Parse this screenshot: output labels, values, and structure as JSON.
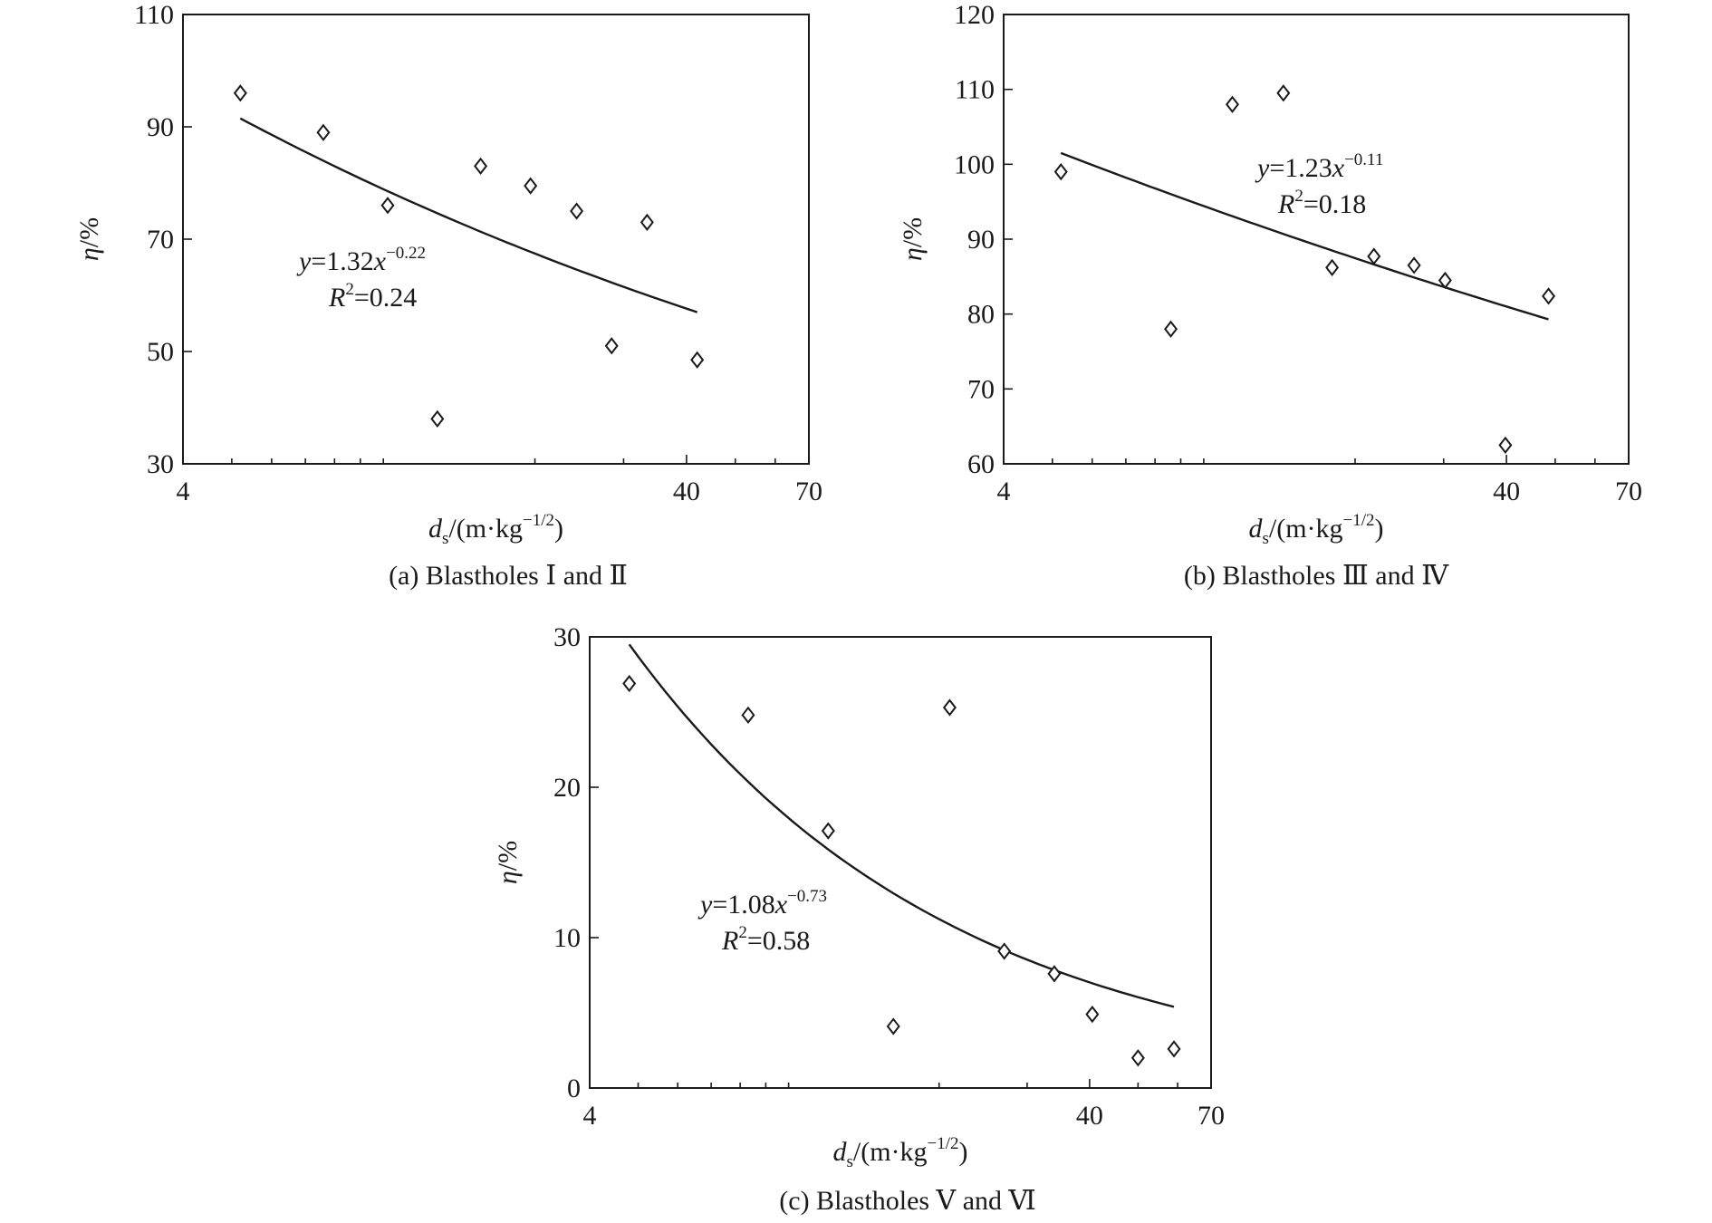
{
  "chart_data": [
    {
      "type": "scatter",
      "caption": "(a) Blastholes Ⅰ and Ⅱ",
      "xlabel": {
        "main": "d",
        "sub": "s",
        "rest": "/(m·kg",
        "sup": "−1/2",
        "end": ")"
      },
      "ylabel": {
        "main": "η",
        "rest": "/%"
      },
      "x_scale": "log",
      "xlim": [
        4,
        70
      ],
      "ylim": [
        30,
        110
      ],
      "x_ticks": [
        4,
        40,
        70
      ],
      "y_ticks": [
        30,
        50,
        70,
        90,
        110
      ],
      "points": [
        {
          "x": 5.2,
          "y": 96
        },
        {
          "x": 7.6,
          "y": 89
        },
        {
          "x": 10.2,
          "y": 76
        },
        {
          "x": 12.8,
          "y": 38
        },
        {
          "x": 15.6,
          "y": 83
        },
        {
          "x": 19.6,
          "y": 79.5
        },
        {
          "x": 24.2,
          "y": 75
        },
        {
          "x": 28.4,
          "y": 51
        },
        {
          "x": 33.4,
          "y": 73
        },
        {
          "x": 42.0,
          "y": 48.5
        }
      ],
      "fit": {
        "x": [
          5.2,
          42.0
        ],
        "y": [
          91.5,
          57
        ]
      },
      "equation": {
        "lhs": "y",
        "mid": "=1.32",
        "var": "x",
        "exp": "−0.22"
      },
      "r2": {
        "lhs": "R",
        "sup": "2",
        "rest": "=0.24"
      }
    },
    {
      "type": "scatter",
      "caption": "(b) Blastholes Ⅲ and Ⅳ",
      "xlabel": {
        "main": "d",
        "sub": "s",
        "rest": "/(m·kg",
        "sup": "−1/2",
        "end": ")"
      },
      "ylabel": {
        "main": "η",
        "rest": "/%"
      },
      "x_scale": "log",
      "xlim": [
        4,
        70
      ],
      "ylim": [
        60,
        120
      ],
      "x_ticks": [
        4,
        40,
        70
      ],
      "y_ticks": [
        60,
        70,
        80,
        90,
        100,
        110,
        120
      ],
      "points": [
        {
          "x": 5.2,
          "y": 99
        },
        {
          "x": 8.6,
          "y": 78
        },
        {
          "x": 11.4,
          "y": 108
        },
        {
          "x": 14.4,
          "y": 109.5
        },
        {
          "x": 18.0,
          "y": 86.2
        },
        {
          "x": 21.8,
          "y": 87.7
        },
        {
          "x": 26.2,
          "y": 86.5
        },
        {
          "x": 30.2,
          "y": 84.5
        },
        {
          "x": 39.8,
          "y": 62.5
        },
        {
          "x": 48.5,
          "y": 82.4
        }
      ],
      "fit": {
        "x": [
          5.2,
          48.5
        ],
        "y": [
          101.5,
          79.3
        ]
      },
      "equation": {
        "lhs": "y",
        "mid": "=1.23",
        "var": "x",
        "exp": "−0.11"
      },
      "r2": {
        "lhs": "R",
        "sup": "2",
        "rest": "=0.18"
      }
    },
    {
      "type": "scatter",
      "caption": "(c) Blastholes Ⅴ and Ⅵ",
      "xlabel": {
        "main": "d",
        "sub": "s",
        "rest": "/(m·kg",
        "sup": "−1/2",
        "end": ")"
      },
      "ylabel": {
        "main": "η",
        "rest": "/%"
      },
      "x_scale": "log",
      "xlim": [
        4,
        70
      ],
      "ylim": [
        0,
        30
      ],
      "x_ticks": [
        4,
        40,
        70
      ],
      "y_ticks": [
        0,
        10,
        20,
        30
      ],
      "points": [
        {
          "x": 4.8,
          "y": 26.9
        },
        {
          "x": 8.3,
          "y": 24.8
        },
        {
          "x": 12.0,
          "y": 17.1
        },
        {
          "x": 16.2,
          "y": 4.1
        },
        {
          "x": 21.0,
          "y": 25.3
        },
        {
          "x": 27.0,
          "y": 9.1
        },
        {
          "x": 34.0,
          "y": 7.6
        },
        {
          "x": 40.5,
          "y": 4.9
        },
        {
          "x": 50.0,
          "y": 2.0
        },
        {
          "x": 59.0,
          "y": 2.6
        }
      ],
      "fit": {
        "x": [
          4.8,
          59.0
        ],
        "y": [
          29.5,
          5.4
        ]
      },
      "equation": {
        "lhs": "y",
        "mid": "=1.08",
        "var": "x",
        "exp": "−0.73"
      },
      "r2": {
        "lhs": "R",
        "sup": "2",
        "rest": "=0.58"
      }
    }
  ]
}
